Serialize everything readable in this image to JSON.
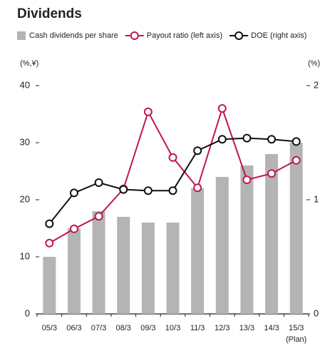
{
  "chart_data": {
    "type": "bar_line",
    "title": "Dividends",
    "y_unit": "(%,¥)",
    "y2_unit": "(%)",
    "categories": [
      "05/3",
      "06/3",
      "07/3",
      "08/3",
      "09/3",
      "10/3",
      "11/3",
      "12/3",
      "13/3",
      "14/3",
      "15/3"
    ],
    "plan_note": "(Plan)",
    "ylim": [
      0,
      40
    ],
    "yticks": [
      0,
      10,
      20,
      30,
      40
    ],
    "y2lim": [
      0,
      2
    ],
    "y2ticks": [
      0,
      1,
      2
    ],
    "series": [
      {
        "name": "Cash dividends per share",
        "type": "bar",
        "color": "#b4b4b4",
        "values": [
          10,
          15,
          18,
          17,
          16,
          16,
          22,
          24,
          26,
          28,
          30
        ]
      },
      {
        "name": "Payout ratio (left axis)",
        "type": "line",
        "color": "#c0184a",
        "values": [
          12.4,
          14.9,
          17.1,
          21.9,
          35.4,
          27.4,
          22.1,
          36,
          23.5,
          24.6,
          26.9
        ]
      },
      {
        "name": "DOE (right axis)",
        "type": "line",
        "axis": "y2",
        "color": "#111111",
        "values": [
          0.79,
          1.06,
          1.15,
          1.09,
          1.08,
          1.08,
          1.43,
          1.53,
          1.54,
          1.53,
          1.51
        ]
      }
    ]
  }
}
